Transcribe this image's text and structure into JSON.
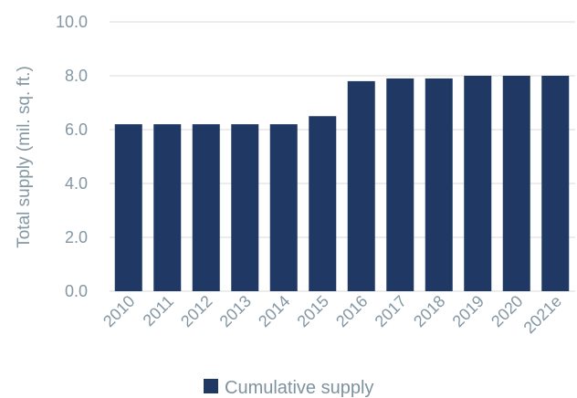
{
  "chart_data": {
    "type": "bar",
    "categories": [
      "2010",
      "2011",
      "2012",
      "2013",
      "2014",
      "2015",
      "2016",
      "2017",
      "2018",
      "2019",
      "2020",
      "2021e"
    ],
    "series": [
      {
        "name": "Cumulative supply",
        "values": [
          6.2,
          6.2,
          6.2,
          6.2,
          6.2,
          6.5,
          7.8,
          7.9,
          7.9,
          8.0,
          8.0,
          8.0
        ]
      }
    ],
    "ylabel": "Total supply (mil. sq. ft.)",
    "ylim": [
      0,
      10
    ],
    "yticks": [
      "0.0",
      "2.0",
      "4.0",
      "6.0",
      "8.0",
      "10.0"
    ],
    "grid": true,
    "legend": "bottom",
    "colors": {
      "bar": "#1f3864",
      "grid": "#d9d9d9",
      "text": "#8497a3"
    }
  }
}
